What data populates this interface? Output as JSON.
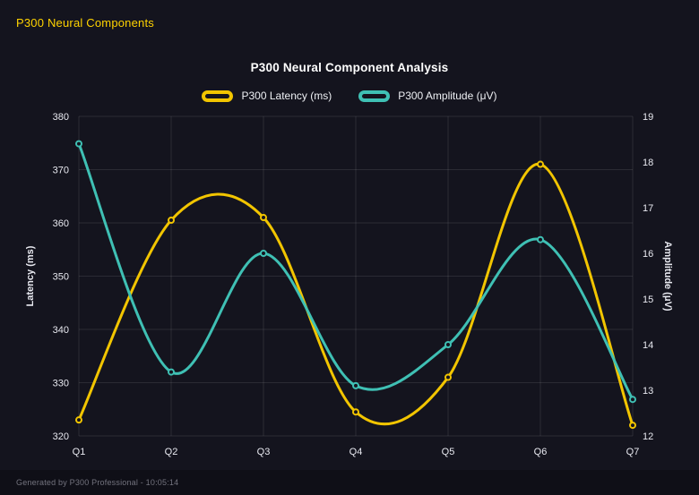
{
  "page": {
    "header_title": "P300 Neural Components",
    "footer": "Generated by P300 Professional - 10:05:14"
  },
  "chart_data": {
    "type": "line",
    "title": "P300 Neural Component Analysis",
    "categories": [
      "Q1",
      "Q2",
      "Q3",
      "Q4",
      "Q5",
      "Q6",
      "Q7"
    ],
    "series": [
      {
        "name": "P300 Latency (ms)",
        "axis": "left",
        "color": "#f2c500",
        "values": [
          323,
          360.5,
          361,
          324.5,
          331,
          371,
          322
        ]
      },
      {
        "name": "P300 Amplitude (μV)",
        "axis": "right",
        "color": "#3fc0b4",
        "values": [
          18.4,
          13.4,
          16,
          13.1,
          14,
          16.3,
          12.8
        ]
      }
    ],
    "left_axis": {
      "label": "Latency (ms)",
      "min": 320,
      "max": 380,
      "step": 10
    },
    "right_axis": {
      "label": "Amplitude (μV)",
      "min": 12,
      "max": 19,
      "step": 1
    },
    "grid": true,
    "legend_position": "top",
    "line_style": "smooth"
  },
  "colors": {
    "background": "#14141e",
    "grid": "rgba(255,255,255,0.10)",
    "tick": "#e8e9f0",
    "axis_title": "#e8e9f0"
  }
}
